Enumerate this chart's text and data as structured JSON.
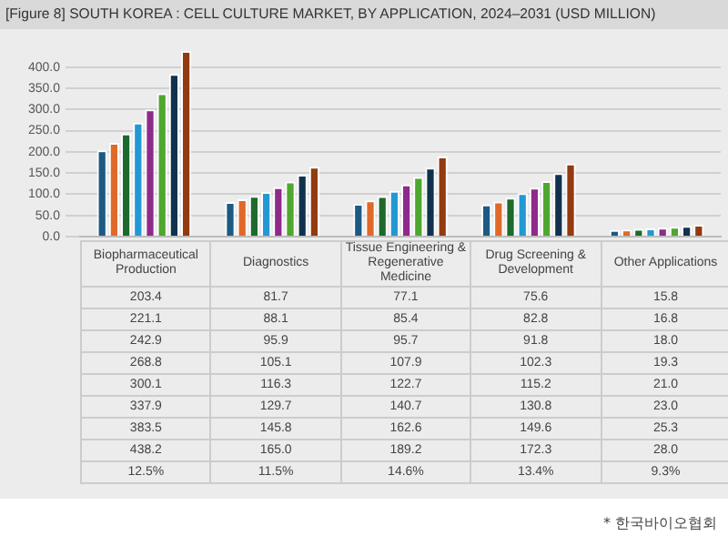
{
  "chart_data": {
    "type": "bar",
    "title": "[Figure 8] SOUTH KOREA : CELL CULTURE MARKET, BY APPLICATION, 2024–2031 (USD MILLION)",
    "categories": [
      "Biopharmaceutical Production",
      "Diagnostics",
      "Tissue Engineering & Regenerative Medicine",
      "Drug Screening & Development",
      "Other Applications"
    ],
    "series": [
      {
        "color": "#1c5a84",
        "values": [
          203.4,
          81.7,
          77.1,
          75.6,
          15.8
        ],
        "value_labels": [
          "203.4",
          "81.7",
          "77.1",
          "75.6",
          "15.8"
        ]
      },
      {
        "color": "#e0692a",
        "values": [
          221.1,
          88.1,
          85.4,
          82.8,
          16.8
        ],
        "value_labels": [
          "221.1",
          "88.1",
          "85.4",
          "82.8",
          "16.8"
        ]
      },
      {
        "color": "#1d6a2c",
        "values": [
          242.9,
          95.9,
          95.7,
          91.8,
          18.0
        ],
        "value_labels": [
          "242.9",
          "95.9",
          "95.7",
          "91.8",
          "18.0"
        ]
      },
      {
        "color": "#2399d3",
        "values": [
          268.8,
          105.1,
          107.9,
          102.3,
          19.3
        ],
        "value_labels": [
          "268.8",
          "105.1",
          "107.9",
          "102.3",
          "19.3"
        ]
      },
      {
        "color": "#8e2a8c",
        "values": [
          300.1,
          116.3,
          122.7,
          115.2,
          21.0
        ],
        "value_labels": [
          "300.1",
          "116.3",
          "122.7",
          "115.2",
          "21.0"
        ]
      },
      {
        "color": "#4ea72e",
        "values": [
          337.9,
          129.7,
          140.7,
          130.8,
          23.0
        ],
        "value_labels": [
          "337.9",
          "129.7",
          "140.7",
          "130.8",
          "23.0"
        ]
      },
      {
        "color": "#10324e",
        "values": [
          383.5,
          145.8,
          162.6,
          149.6,
          25.3
        ],
        "value_labels": [
          "383.5",
          "145.8",
          "162.6",
          "149.6",
          "25.3"
        ]
      },
      {
        "color": "#923a10",
        "values": [
          438.2,
          165.0,
          189.2,
          172.3,
          28.0
        ],
        "value_labels": [
          "438.2",
          "165.0",
          "189.2",
          "172.3",
          "28.0"
        ]
      }
    ],
    "ylim": [
      0,
      450
    ],
    "yticks": [
      {
        "value": 0,
        "label": "0.0"
      },
      {
        "value": 50,
        "label": "50.0"
      },
      {
        "value": 100,
        "label": "100.0"
      },
      {
        "value": 150,
        "label": "150.0"
      },
      {
        "value": 200,
        "label": "200.0"
      },
      {
        "value": 250,
        "label": "250.0"
      },
      {
        "value": 300,
        "label": "300.0"
      },
      {
        "value": 350,
        "label": "350.0"
      },
      {
        "value": 400,
        "label": "400.0"
      }
    ],
    "grid": "y",
    "legend": false,
    "annotations": [
      "12.5%",
      "11.5%",
      "14.6%",
      "13.4%",
      "9.3%",
      "* 한국바이오협회"
    ]
  }
}
